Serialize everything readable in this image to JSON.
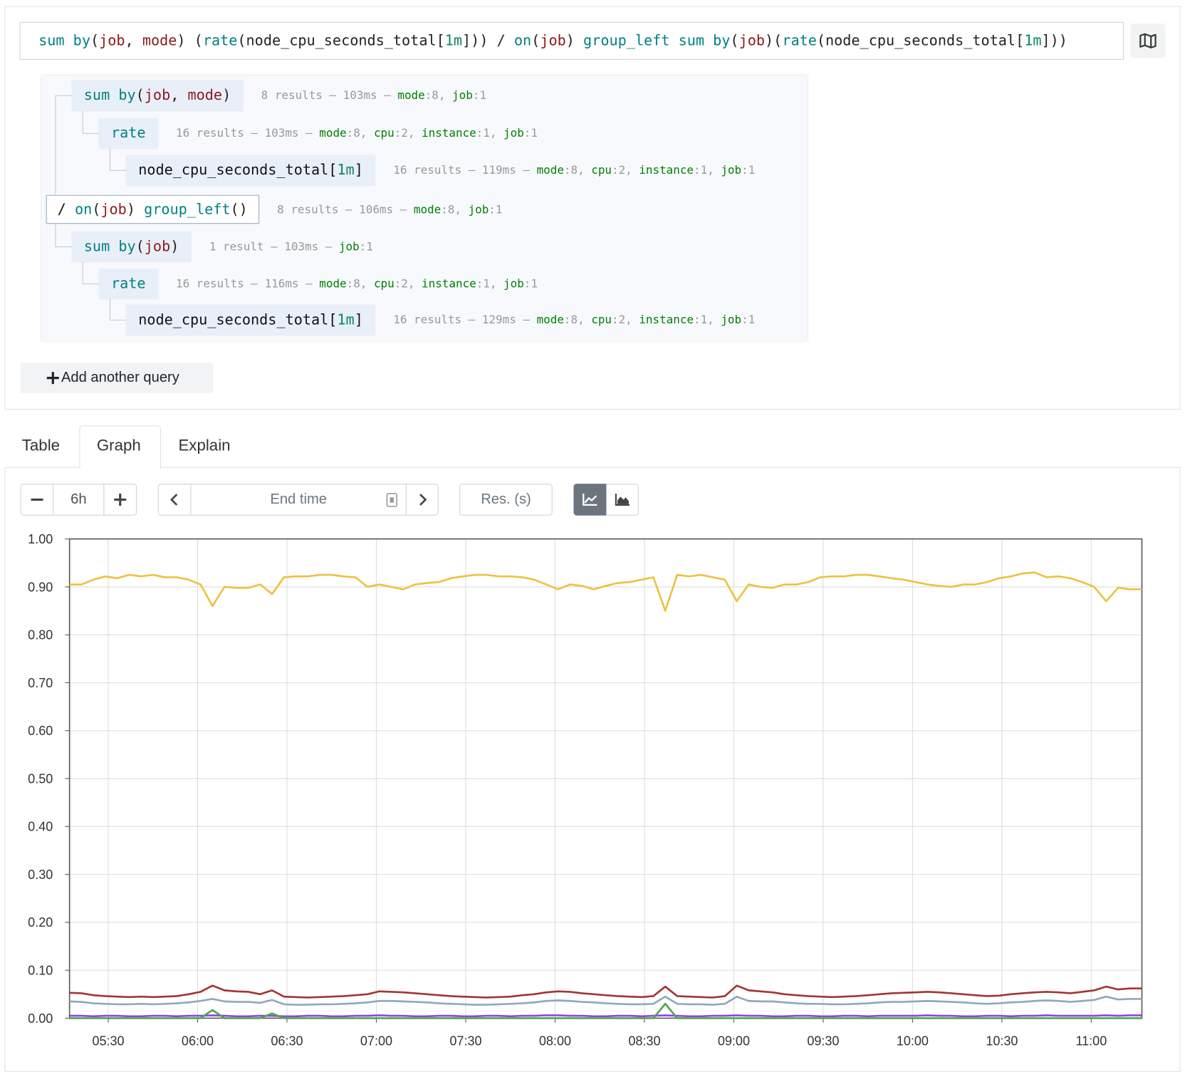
{
  "query": {
    "tokens": [
      {
        "text": "sum by",
        "color": "#008080"
      },
      {
        "text": "(",
        "color": "#222222"
      },
      {
        "text": "job",
        "color": "#8b1a1a"
      },
      {
        "text": ", ",
        "color": "#222222"
      },
      {
        "text": "mode",
        "color": "#8b1a1a"
      },
      {
        "text": ") (",
        "color": "#222222"
      },
      {
        "text": "rate",
        "color": "#008080"
      },
      {
        "text": "(node_cpu_seconds_total[",
        "color": "#222222"
      },
      {
        "text": "1m",
        "color": "#098658"
      },
      {
        "text": "])) / ",
        "color": "#222222"
      },
      {
        "text": "on",
        "color": "#008080"
      },
      {
        "text": "(",
        "color": "#222222"
      },
      {
        "text": "job",
        "color": "#8b1a1a"
      },
      {
        "text": ") ",
        "color": "#222222"
      },
      {
        "text": "group_left",
        "color": "#008080"
      },
      {
        "text": " ",
        "color": "#222222"
      },
      {
        "text": "sum by",
        "color": "#008080"
      },
      {
        "text": "(",
        "color": "#222222"
      },
      {
        "text": "job",
        "color": "#8b1a1a"
      },
      {
        "text": ")(",
        "color": "#222222"
      },
      {
        "text": "rate",
        "color": "#008080"
      },
      {
        "text": "(node_cpu_seconds_total[",
        "color": "#222222"
      },
      {
        "text": "1m",
        "color": "#098658"
      },
      {
        "text": "]))",
        "color": "#222222"
      }
    ]
  },
  "tree": {
    "nodes": [
      {
        "expr": [
          {
            "text": "sum by",
            "color": "#008080"
          },
          {
            "text": "(",
            "color": "#222222"
          },
          {
            "text": "job",
            "color": "#8b1a1a"
          },
          {
            "text": ", ",
            "color": "#222222"
          },
          {
            "text": "mode",
            "color": "#8b1a1a"
          },
          {
            "text": ")",
            "color": "#222222"
          }
        ],
        "stats": [
          "8 results – 103ms – ",
          "mode",
          ":8, ",
          "job",
          ":1"
        ]
      },
      {
        "expr": [
          {
            "text": "rate",
            "color": "#008080"
          }
        ],
        "stats": [
          "16 results – 103ms – ",
          "mode",
          ":8, ",
          "cpu",
          ":2, ",
          "instance",
          ":1, ",
          "job",
          ":1"
        ]
      },
      {
        "expr": [
          {
            "text": "node_cpu_seconds_total[",
            "color": "#111111"
          },
          {
            "text": "1m",
            "color": "#098658"
          },
          {
            "text": "]",
            "color": "#111111"
          }
        ],
        "stats": [
          "16 results – 119ms – ",
          "mode",
          ":8, ",
          "cpu",
          ":2, ",
          "instance",
          ":1, ",
          "job",
          ":1"
        ]
      },
      {
        "expr": [
          {
            "text": "/ ",
            "color": "#111111"
          },
          {
            "text": "on",
            "color": "#008080"
          },
          {
            "text": "(",
            "color": "#222222"
          },
          {
            "text": "job",
            "color": "#8b1a1a"
          },
          {
            "text": ") ",
            "color": "#222222"
          },
          {
            "text": "group_left",
            "color": "#008080"
          },
          {
            "text": "()",
            "color": "#222222"
          }
        ],
        "stats": [
          "8 results – 106ms – ",
          "mode",
          ":8, ",
          "job",
          ":1"
        ]
      },
      {
        "expr": [
          {
            "text": "sum by",
            "color": "#008080"
          },
          {
            "text": "(",
            "color": "#222222"
          },
          {
            "text": "job",
            "color": "#8b1a1a"
          },
          {
            "text": ")",
            "color": "#222222"
          }
        ],
        "stats": [
          "1 result – 103ms – ",
          "job",
          ":1"
        ]
      },
      {
        "expr": [
          {
            "text": "rate",
            "color": "#008080"
          }
        ],
        "stats": [
          "16 results – 116ms – ",
          "mode",
          ":8, ",
          "cpu",
          ":2, ",
          "instance",
          ":1, ",
          "job",
          ":1"
        ]
      },
      {
        "expr": [
          {
            "text": "node_cpu_seconds_total[",
            "color": "#111111"
          },
          {
            "text": "1m",
            "color": "#098658"
          },
          {
            "text": "]",
            "color": "#111111"
          }
        ],
        "stats": [
          "16 results – 129ms – ",
          "mode",
          ":8, ",
          "cpu",
          ":2, ",
          "instance",
          ":1, ",
          "job",
          ":1"
        ]
      }
    ]
  },
  "add_query": "Add another query",
  "tabs": [
    "Table",
    "Graph",
    "Explain"
  ],
  "controls": {
    "range": "6h",
    "end_time": "End time",
    "resolution": "Res. (s)"
  },
  "chart_data": {
    "type": "line",
    "grid": true,
    "x": [
      "05:17",
      "05:21",
      "05:25",
      "05:29",
      "05:33",
      "05:37",
      "05:41",
      "05:45",
      "05:49",
      "05:53",
      "05:57",
      "06:01",
      "06:05",
      "06:09",
      "06:13",
      "06:17",
      "06:21",
      "06:25",
      "06:29",
      "06:33",
      "06:37",
      "06:41",
      "06:45",
      "06:49",
      "06:53",
      "06:57",
      "07:01",
      "07:05",
      "07:09",
      "07:13",
      "07:17",
      "07:21",
      "07:25",
      "07:29",
      "07:33",
      "07:37",
      "07:41",
      "07:45",
      "07:49",
      "07:53",
      "07:57",
      "08:01",
      "08:05",
      "08:09",
      "08:13",
      "08:17",
      "08:21",
      "08:25",
      "08:29",
      "08:33",
      "08:37",
      "08:41",
      "08:45",
      "08:49",
      "08:53",
      "08:57",
      "09:01",
      "09:05",
      "09:09",
      "09:13",
      "09:17",
      "09:21",
      "09:25",
      "09:29",
      "09:33",
      "09:37",
      "09:41",
      "09:45",
      "09:49",
      "09:53",
      "09:57",
      "10:01",
      "10:05",
      "10:09",
      "10:13",
      "10:17",
      "10:21",
      "10:25",
      "10:29",
      "10:33",
      "10:37",
      "10:41",
      "10:45",
      "10:49",
      "10:53",
      "10:57",
      "11:01",
      "11:05",
      "11:09",
      "11:13",
      "11:17"
    ],
    "xlim": [
      "05:17",
      "11:17"
    ],
    "xticks": [
      "05:30",
      "06:00",
      "06:30",
      "07:00",
      "07:30",
      "08:00",
      "08:30",
      "09:00",
      "09:30",
      "10:00",
      "10:30",
      "11:00"
    ],
    "ylim": [
      0,
      1
    ],
    "yticks": [
      {
        "value": 0,
        "label": "0.00"
      },
      {
        "value": 0.1,
        "label": "0.10"
      },
      {
        "value": 0.2,
        "label": "0.20"
      },
      {
        "value": 0.3,
        "label": "0.30"
      },
      {
        "value": 0.4,
        "label": "0.40"
      },
      {
        "value": 0.5,
        "label": "0.50"
      },
      {
        "value": 0.6,
        "label": "0.60"
      },
      {
        "value": 0.7,
        "label": "0.70"
      },
      {
        "value": 0.8,
        "label": "0.80"
      },
      {
        "value": 0.9,
        "label": "0.90"
      },
      {
        "value": 1,
        "label": "1.00"
      }
    ],
    "series": [
      {
        "color": "#edc240",
        "values": [
          0.905,
          0.905,
          0.915,
          0.922,
          0.918,
          0.925,
          0.922,
          0.925,
          0.92,
          0.92,
          0.915,
          0.905,
          0.86,
          0.9,
          0.898,
          0.898,
          0.905,
          0.885,
          0.92,
          0.922,
          0.922,
          0.925,
          0.925,
          0.922,
          0.92,
          0.9,
          0.905,
          0.9,
          0.895,
          0.905,
          0.908,
          0.91,
          0.918,
          0.922,
          0.925,
          0.925,
          0.922,
          0.922,
          0.92,
          0.915,
          0.905,
          0.895,
          0.905,
          0.902,
          0.895,
          0.902,
          0.908,
          0.91,
          0.915,
          0.92,
          0.85,
          0.925,
          0.922,
          0.925,
          0.92,
          0.915,
          0.87,
          0.905,
          0.9,
          0.898,
          0.905,
          0.905,
          0.91,
          0.92,
          0.922,
          0.922,
          0.925,
          0.925,
          0.922,
          0.918,
          0.915,
          0.91,
          0.905,
          0.902,
          0.9,
          0.905,
          0.905,
          0.91,
          0.918,
          0.922,
          0.928,
          0.93,
          0.92,
          0.922,
          0.918,
          0.91,
          0.9,
          0.87,
          0.898,
          0.895,
          0.895
        ]
      },
      {
        "color": "#a33535",
        "values": [
          0.053,
          0.052,
          0.048,
          0.046,
          0.045,
          0.044,
          0.045,
          0.044,
          0.045,
          0.046,
          0.05,
          0.055,
          0.068,
          0.058,
          0.056,
          0.055,
          0.05,
          0.058,
          0.045,
          0.044,
          0.043,
          0.044,
          0.045,
          0.046,
          0.048,
          0.05,
          0.056,
          0.055,
          0.054,
          0.052,
          0.05,
          0.048,
          0.046,
          0.045,
          0.044,
          0.043,
          0.044,
          0.045,
          0.048,
          0.05,
          0.054,
          0.056,
          0.055,
          0.052,
          0.05,
          0.048,
          0.046,
          0.045,
          0.044,
          0.046,
          0.066,
          0.046,
          0.045,
          0.044,
          0.043,
          0.046,
          0.068,
          0.058,
          0.056,
          0.054,
          0.05,
          0.048,
          0.046,
          0.045,
          0.044,
          0.045,
          0.046,
          0.048,
          0.05,
          0.052,
          0.053,
          0.054,
          0.055,
          0.054,
          0.052,
          0.05,
          0.048,
          0.046,
          0.047,
          0.05,
          0.052,
          0.054,
          0.055,
          0.054,
          0.052,
          0.055,
          0.058,
          0.066,
          0.06,
          0.062,
          0.062
        ]
      },
      {
        "color": "#8fa9bd",
        "values": [
          0.035,
          0.034,
          0.031,
          0.03,
          0.029,
          0.029,
          0.03,
          0.029,
          0.03,
          0.031,
          0.033,
          0.036,
          0.04,
          0.035,
          0.034,
          0.034,
          0.032,
          0.038,
          0.029,
          0.028,
          0.028,
          0.029,
          0.029,
          0.03,
          0.031,
          0.033,
          0.036,
          0.036,
          0.035,
          0.034,
          0.033,
          0.031,
          0.03,
          0.029,
          0.028,
          0.028,
          0.029,
          0.03,
          0.031,
          0.033,
          0.036,
          0.037,
          0.036,
          0.034,
          0.033,
          0.031,
          0.03,
          0.029,
          0.029,
          0.03,
          0.045,
          0.03,
          0.029,
          0.029,
          0.028,
          0.03,
          0.045,
          0.036,
          0.035,
          0.035,
          0.033,
          0.031,
          0.03,
          0.03,
          0.029,
          0.029,
          0.03,
          0.031,
          0.033,
          0.034,
          0.034,
          0.035,
          0.036,
          0.035,
          0.034,
          0.033,
          0.031,
          0.03,
          0.031,
          0.033,
          0.034,
          0.036,
          0.037,
          0.036,
          0.034,
          0.036,
          0.038,
          0.045,
          0.039,
          0.04,
          0.04
        ]
      },
      {
        "color": "#9440ed",
        "values": [
          0.005,
          0.005,
          0.004,
          0.005,
          0.005,
          0.004,
          0.004,
          0.005,
          0.005,
          0.004,
          0.005,
          0.005,
          0.006,
          0.005,
          0.004,
          0.004,
          0.005,
          0.005,
          0.004,
          0.004,
          0.005,
          0.005,
          0.004,
          0.004,
          0.005,
          0.005,
          0.006,
          0.005,
          0.005,
          0.004,
          0.004,
          0.005,
          0.005,
          0.004,
          0.004,
          0.005,
          0.005,
          0.004,
          0.005,
          0.005,
          0.006,
          0.006,
          0.005,
          0.005,
          0.004,
          0.004,
          0.005,
          0.005,
          0.004,
          0.005,
          0.006,
          0.005,
          0.004,
          0.004,
          0.005,
          0.005,
          0.006,
          0.005,
          0.005,
          0.004,
          0.004,
          0.005,
          0.005,
          0.004,
          0.004,
          0.005,
          0.005,
          0.004,
          0.005,
          0.005,
          0.005,
          0.005,
          0.006,
          0.005,
          0.005,
          0.004,
          0.004,
          0.005,
          0.005,
          0.004,
          0.005,
          0.005,
          0.006,
          0.005,
          0.005,
          0.005,
          0.005,
          0.006,
          0.005,
          0.006,
          0.006
        ]
      },
      {
        "color": "#4da74d",
        "values": [
          0,
          0,
          0,
          0,
          0,
          0,
          0,
          0,
          0,
          0,
          0,
          0,
          0.017,
          0,
          0,
          0,
          0,
          0.01,
          0,
          0,
          0,
          0,
          0,
          0,
          0,
          0,
          0,
          0,
          0,
          0,
          0,
          0,
          0,
          0,
          0,
          0,
          0,
          0,
          0,
          0,
          0,
          0,
          0,
          0,
          0,
          0,
          0,
          0,
          0,
          0,
          0.03,
          0,
          0,
          0,
          0,
          0,
          0,
          0,
          0,
          0,
          0,
          0,
          0,
          0,
          0,
          0,
          0,
          0,
          0,
          0,
          0,
          0,
          0,
          0,
          0,
          0,
          0,
          0,
          0,
          0,
          0,
          0,
          0,
          0,
          0,
          0,
          0,
          0,
          0,
          0,
          0
        ]
      }
    ]
  }
}
